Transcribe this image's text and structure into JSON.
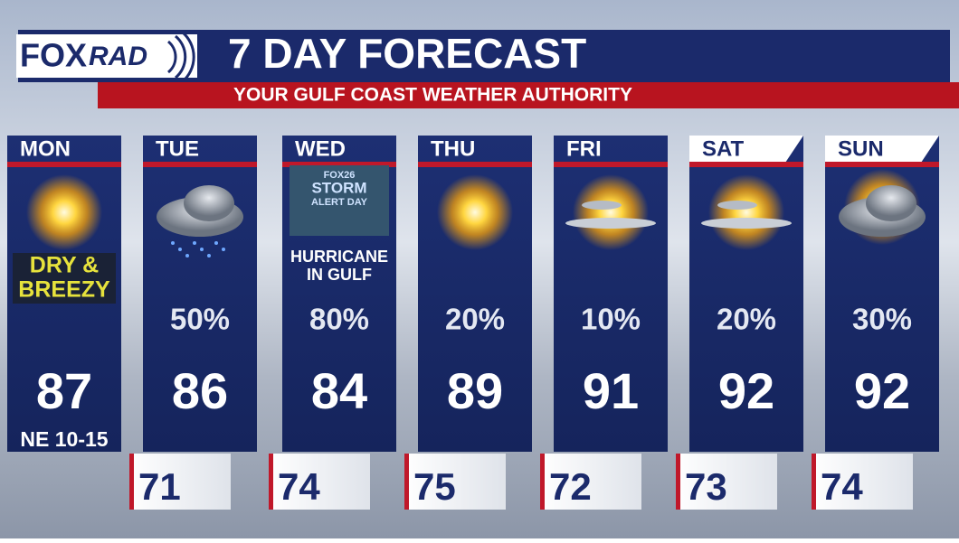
{
  "header": {
    "logo": [
      "FOX",
      "RAD"
    ],
    "title": "7 DAY FORECAST",
    "subtitle": "YOUR GULF COAST WEATHER AUTHORITY"
  },
  "days": [
    {
      "day": "MON",
      "condition": [
        "DRY &",
        "BREEZY"
      ],
      "high": 87,
      "wind": "NE 10-15"
    },
    {
      "day": "TUE",
      "precip": "50%",
      "high": 86
    },
    {
      "day": "WED",
      "badge": [
        "FOX26",
        "STORM",
        "ALERT DAY"
      ],
      "condition": [
        "HURRICANE",
        "IN GULF"
      ],
      "precip": "80%",
      "high": 84
    },
    {
      "day": "THU",
      "precip": "20%",
      "high": 89
    },
    {
      "day": "FRI",
      "precip": "10%",
      "high": 91
    },
    {
      "day": "SAT",
      "precip": "20%",
      "high": 92
    },
    {
      "day": "SUN",
      "precip": "30%",
      "high": 92
    }
  ],
  "lows": [
    71,
    74,
    75,
    72,
    73,
    74
  ]
}
